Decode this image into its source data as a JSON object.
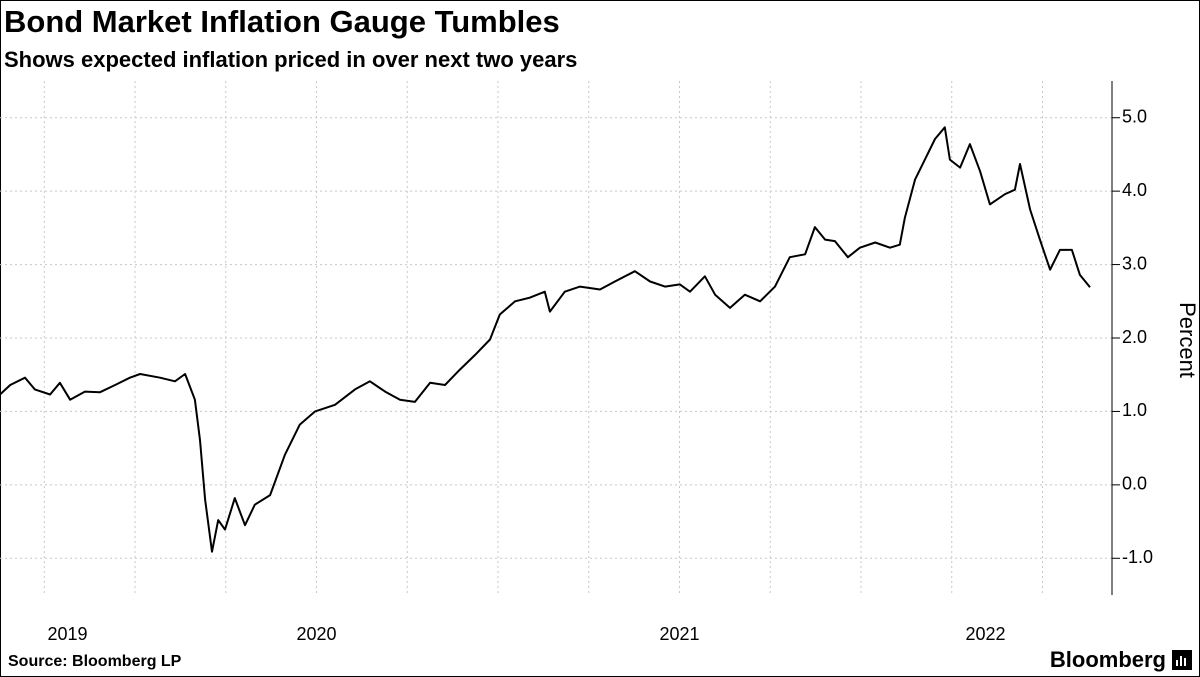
{
  "chart_data": {
    "type": "line",
    "title": "Bond Market Inflation Gauge Tumbles",
    "subtitle": "Shows expected inflation priced in over next two years",
    "y_label": "Percent",
    "source": "Source: Bloomberg LP",
    "brand": "Bloomberg",
    "color": "#000000",
    "x": [
      2019.628,
      2019.656,
      2019.697,
      2019.724,
      2019.766,
      2019.793,
      2019.821,
      2019.862,
      2019.903,
      2019.945,
      2019.986,
      2020.014,
      2020.069,
      2020.11,
      2020.138,
      2020.165,
      2020.179,
      2020.193,
      2020.212,
      2020.229,
      2020.248,
      2020.275,
      2020.303,
      2020.33,
      2020.372,
      2020.413,
      2020.454,
      2020.496,
      2020.551,
      2020.606,
      2020.647,
      2020.689,
      2020.73,
      2020.771,
      2020.813,
      2020.854,
      2020.895,
      2020.937,
      2020.978,
      2021.005,
      2021.047,
      2021.088,
      2021.129,
      2021.143,
      2021.184,
      2021.226,
      2021.281,
      2021.322,
      2021.377,
      2021.419,
      2021.46,
      2021.501,
      2021.529,
      2021.57,
      2021.598,
      2021.639,
      2021.68,
      2021.722,
      2021.763,
      2021.804,
      2021.846,
      2021.873,
      2021.901,
      2021.928,
      2021.964,
      2021.997,
      2022.039,
      2022.08,
      2022.107,
      2022.121,
      2022.149,
      2022.176,
      2022.204,
      2022.231,
      2022.245,
      2022.273,
      2022.3,
      2022.328,
      2022.355,
      2022.397,
      2022.424,
      2022.438,
      2022.466,
      2022.493,
      2022.521,
      2022.548,
      2022.581,
      2022.603,
      2022.631
    ],
    "values": [
      1.23,
      1.36,
      1.46,
      1.3,
      1.23,
      1.39,
      1.16,
      1.27,
      1.26,
      1.36,
      1.46,
      1.51,
      1.46,
      1.41,
      1.51,
      1.16,
      0.61,
      -0.2,
      -0.91,
      -0.48,
      -0.61,
      -0.18,
      -0.55,
      -0.27,
      -0.14,
      0.41,
      0.82,
      1.0,
      1.09,
      1.3,
      1.41,
      1.27,
      1.16,
      1.13,
      1.39,
      1.36,
      1.57,
      1.77,
      1.98,
      2.32,
      2.5,
      2.55,
      2.63,
      2.36,
      2.63,
      2.7,
      2.66,
      2.77,
      2.91,
      2.77,
      2.7,
      2.73,
      2.63,
      2.84,
      2.59,
      2.41,
      2.59,
      2.5,
      2.7,
      3.1,
      3.14,
      3.51,
      3.34,
      3.32,
      3.1,
      3.23,
      3.3,
      3.23,
      3.27,
      3.64,
      4.16,
      4.43,
      4.71,
      4.87,
      4.43,
      4.32,
      4.64,
      4.27,
      3.82,
      3.96,
      4.02,
      4.37,
      3.75,
      3.34,
      2.93,
      3.2,
      3.2,
      2.86,
      2.69
    ],
    "xlim": [
      2019.628,
      2022.686
    ],
    "xticks": [
      2019,
      2020,
      2021,
      2022
    ],
    "xgrid": [
      2019.75,
      2020,
      2020.25,
      2020.5,
      2020.75,
      2021,
      2021.25,
      2021.5,
      2021.75,
      2022,
      2022.25,
      2022.5
    ],
    "ylim": [
      -1.5,
      5.5
    ],
    "yticks": [
      {
        "value": -1,
        "label": "-1.0"
      },
      {
        "value": 0,
        "label": "0.0"
      },
      {
        "value": 1,
        "label": "1.0"
      },
      {
        "value": 2,
        "label": "2.0"
      },
      {
        "value": 3,
        "label": "3.0"
      },
      {
        "value": 4,
        "label": "4.0"
      },
      {
        "value": 5,
        "label": "5.0"
      }
    ],
    "grid": true
  }
}
